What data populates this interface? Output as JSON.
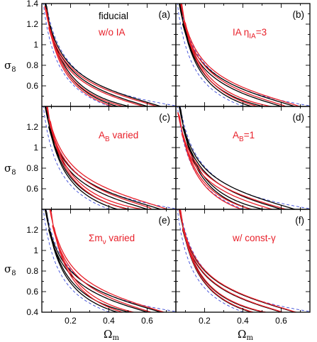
{
  "colors": {
    "fiducial": "#000000",
    "variant": "#e8202a",
    "prior": "#3a4ad8"
  },
  "axes": {
    "xlabel": "Ω",
    "xlabel_sub": "m",
    "ylabel": "σ",
    "ylabel_sub": "8"
  },
  "legend": {
    "fiducial": "fiducial",
    "wo_ia": "w/o IA"
  },
  "chart_data": [
    {
      "type": "line",
      "panel": "(a)",
      "x_range": [
        0.05,
        0.75
      ],
      "y_range": [
        0.4,
        1.4
      ],
      "x_ticks": [
        "0.2",
        "0.4",
        "0.6"
      ],
      "y_ticks": [
        "0.6",
        "0.8",
        "1",
        "1.2",
        "1.4"
      ],
      "label_text": "w/o IA",
      "series": [
        {
          "name": "fiducial",
          "style": "solid-black"
        },
        {
          "name": "w/o IA",
          "style": "solid-red"
        }
      ],
      "shift_variant": [
        0.0,
        0.0
      ],
      "scale_variant": 0.97
    },
    {
      "type": "line",
      "panel": "(b)",
      "x_range": [
        0.05,
        0.75
      ],
      "y_range": [
        0.4,
        1.4
      ],
      "x_ticks": [
        "0.2",
        "0.4",
        "0.6"
      ],
      "y_ticks": [
        "0.6",
        "0.8",
        "1",
        "1.2",
        "1.4"
      ],
      "label_prefix": "IA ",
      "label_greek": "η",
      "label_sub": "IA",
      "label_suffix": "=3",
      "shift_variant": [
        0.005,
        0.005
      ],
      "scale_variant": 1.02
    },
    {
      "type": "line",
      "panel": "(c)",
      "x_range": [
        0.05,
        0.75
      ],
      "y_range": [
        0.4,
        1.4
      ],
      "x_ticks": [
        "0.2",
        "0.4",
        "0.6"
      ],
      "y_ticks": [
        "0.6",
        "0.8",
        "1",
        "1.2",
        "1.4"
      ],
      "label_main": "A",
      "label_sub": "B",
      "label_suffix": " varied",
      "shift_variant": [
        0.0,
        0.0
      ],
      "scale_variant": 1.06
    },
    {
      "type": "line",
      "panel": "(d)",
      "x_range": [
        0.05,
        0.75
      ],
      "y_range": [
        0.4,
        1.4
      ],
      "x_ticks": [
        "0.2",
        "0.4",
        "0.6"
      ],
      "y_ticks": [
        "0.6",
        "0.8",
        "1",
        "1.2",
        "1.4"
      ],
      "label_main": "A",
      "label_sub": "B",
      "label_suffix": "=1",
      "shift_variant": [
        -0.005,
        -0.005
      ],
      "scale_variant": 0.95
    },
    {
      "type": "line",
      "panel": "(e)",
      "x_range": [
        0.05,
        0.75
      ],
      "y_range": [
        0.4,
        1.4
      ],
      "x_ticks": [
        "0.2",
        "0.4",
        "0.6"
      ],
      "y_ticks": [
        "0.6",
        "0.8",
        "1",
        "1.2",
        "1.4"
      ],
      "label_main": "Σm",
      "label_sub": "ν",
      "label_suffix": " varied",
      "shift_variant": [
        0.02,
        -0.02
      ],
      "scale_variant": 1.05
    },
    {
      "type": "line",
      "panel": "(f)",
      "x_range": [
        0.05,
        0.75
      ],
      "y_range": [
        0.4,
        1.4
      ],
      "x_ticks": [
        "0.2",
        "0.4",
        "0.6"
      ],
      "y_ticks": [
        "0.6",
        "0.8",
        "1",
        "1.2",
        "1.4"
      ],
      "label_main": "w/ const-γ",
      "shift_variant": [
        0.0,
        0.0
      ],
      "scale_variant": 1.01
    }
  ]
}
